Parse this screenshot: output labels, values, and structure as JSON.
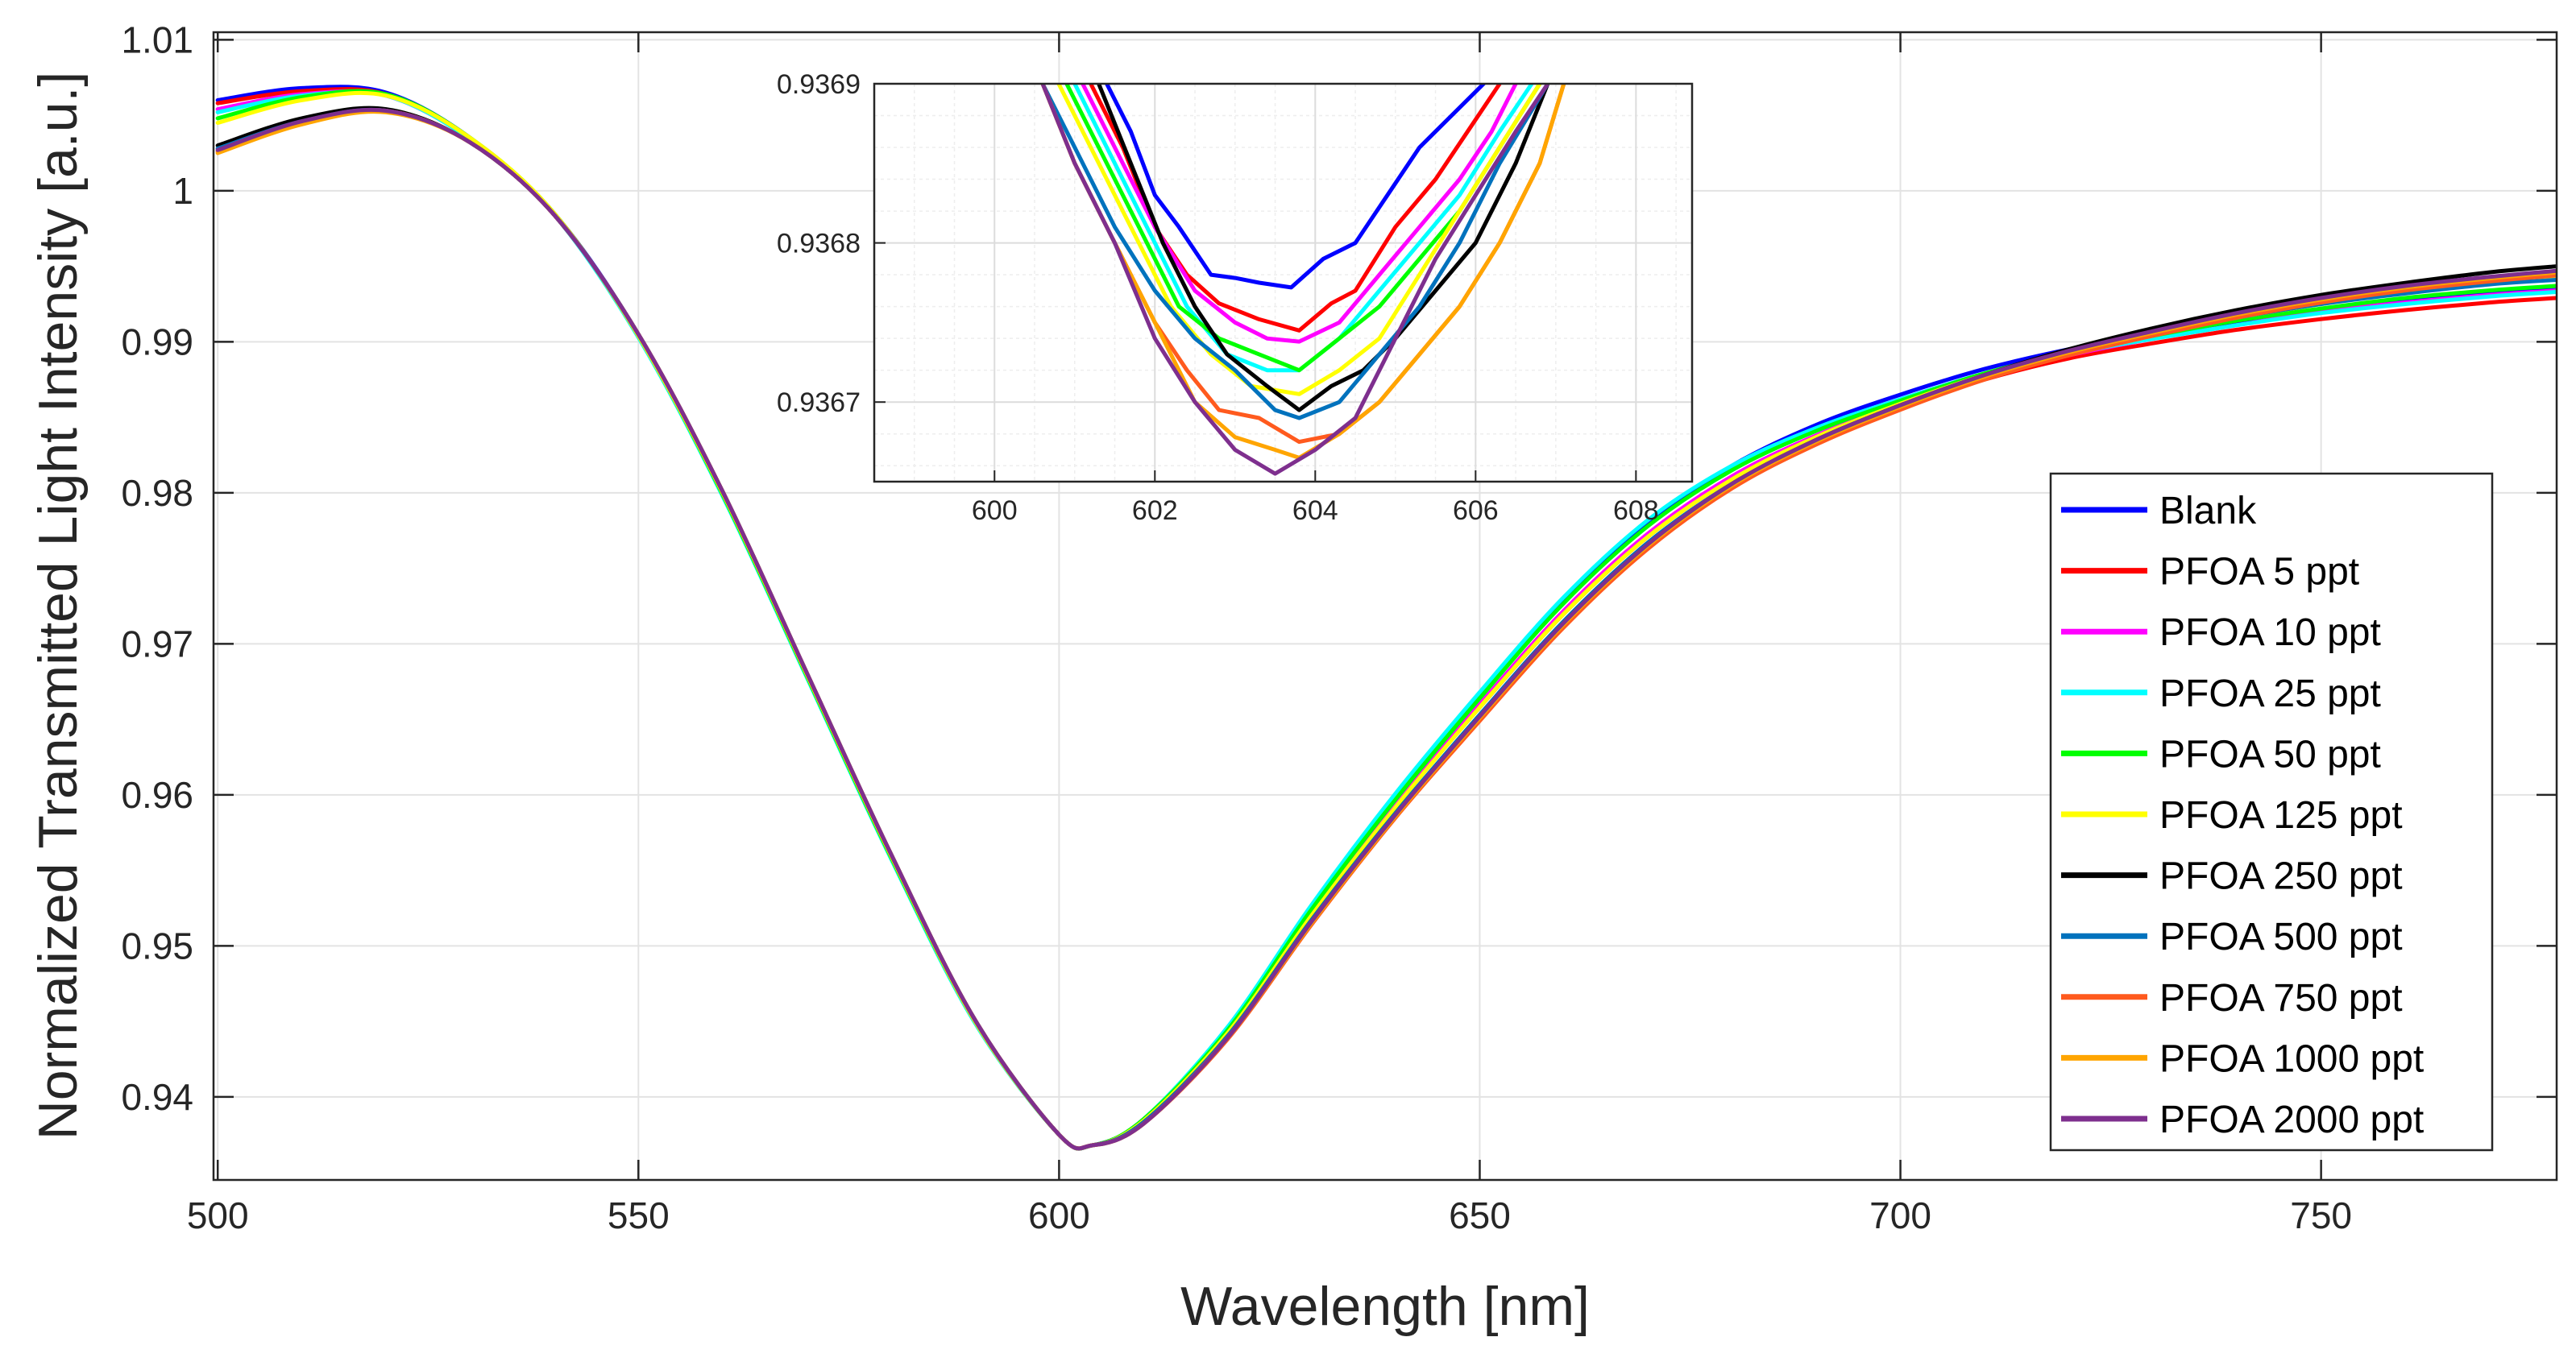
{
  "chart_data": [
    {
      "id": "main",
      "type": "line",
      "title": "",
      "xlabel": "Wavelength [nm]",
      "ylabel": "Normalized Transmitted Light Intensity [a.u.]",
      "xlim": [
        499.5,
        778
      ],
      "ylim": [
        0.9345,
        1.0105
      ],
      "xticks": [
        500,
        550,
        600,
        650,
        700,
        750
      ],
      "xtick_labels": [
        "500",
        "550",
        "600",
        "650",
        "700",
        "750"
      ],
      "yticks": [
        0.94,
        0.95,
        0.96,
        0.97,
        0.98,
        0.99,
        1.0,
        1.01
      ],
      "ytick_labels": [
        "0.94",
        "0.95",
        "0.96",
        "0.97",
        "0.98",
        "0.99",
        "1",
        "1.01"
      ],
      "grid": true,
      "legend_position": "bottom-right",
      "x": [
        500,
        510,
        520,
        530,
        540,
        550,
        560,
        570,
        580,
        590,
        600,
        604,
        610,
        620,
        630,
        640,
        650,
        660,
        670,
        680,
        690,
        700,
        710,
        720,
        730,
        740,
        750,
        760,
        770,
        778
      ],
      "series": [
        {
          "name": "Blank",
          "color": "#0000FF",
          "values": [
            1.006,
            1.0068,
            1.0065,
            1.0035,
            0.9985,
            0.9905,
            0.98,
            0.968,
            0.956,
            0.945,
            0.9375,
            0.9368,
            0.9385,
            0.9445,
            0.9525,
            0.9598,
            0.9665,
            0.9728,
            0.978,
            0.9818,
            0.9845,
            0.9865,
            0.9882,
            0.9895,
            0.9905,
            0.9913,
            0.9921,
            0.9928,
            0.9933,
            0.9936
          ]
        },
        {
          "name": "PFOA 5 ppt",
          "color": "#FF0000",
          "values": [
            1.0058,
            1.0066,
            1.0064,
            1.0034,
            0.9984,
            0.9904,
            0.98,
            0.968,
            0.956,
            0.945,
            0.9375,
            0.9368,
            0.9384,
            0.9443,
            0.9521,
            0.9593,
            0.9658,
            0.972,
            0.9771,
            0.9809,
            0.9836,
            0.9857,
            0.9875,
            0.9889,
            0.9899,
            0.9908,
            0.9915,
            0.9921,
            0.9926,
            0.9929
          ]
        },
        {
          "name": "PFOA 10 ppt",
          "color": "#FF00FF",
          "values": [
            1.0054,
            1.0064,
            1.0063,
            1.0034,
            0.9984,
            0.9904,
            0.98,
            0.968,
            0.956,
            0.945,
            0.9375,
            0.9368,
            0.9384,
            0.9443,
            0.9522,
            0.9594,
            0.966,
            0.9722,
            0.9773,
            0.9811,
            0.9838,
            0.9859,
            0.9877,
            0.9891,
            0.9902,
            0.9911,
            0.992,
            0.9926,
            0.9931,
            0.9934
          ]
        },
        {
          "name": "PFOA 25 ppt",
          "color": "#00FFFF",
          "values": [
            1.0052,
            1.0063,
            1.0063,
            1.0034,
            0.9984,
            0.9903,
            0.9798,
            0.9678,
            0.9558,
            0.9449,
            0.9375,
            0.9368,
            0.9385,
            0.9446,
            0.9527,
            0.9601,
            0.9668,
            0.9731,
            0.9782,
            0.9818,
            0.9843,
            0.9862,
            0.9879,
            0.9892,
            0.9902,
            0.9911,
            0.9919,
            0.9925,
            0.993,
            0.9933
          ]
        },
        {
          "name": "PFOA 50 ppt",
          "color": "#00FF00",
          "values": [
            1.0048,
            1.0062,
            1.0064,
            1.0035,
            0.9985,
            0.9904,
            0.9799,
            0.9679,
            0.9559,
            0.945,
            0.9375,
            0.9368,
            0.9385,
            0.9444,
            0.9524,
            0.9597,
            0.9664,
            0.9727,
            0.9778,
            0.9815,
            0.9841,
            0.9861,
            0.9879,
            0.9893,
            0.9904,
            0.9914,
            0.9922,
            0.9929,
            0.9934,
            0.9937
          ]
        },
        {
          "name": "PFOA 125 ppt",
          "color": "#FFFF00",
          "values": [
            1.0045,
            1.006,
            1.0063,
            1.0035,
            0.9985,
            0.9904,
            0.98,
            0.968,
            0.956,
            0.945,
            0.9375,
            0.9368,
            0.9384,
            0.9442,
            0.952,
            0.9592,
            0.9658,
            0.972,
            0.9771,
            0.9809,
            0.9837,
            0.9859,
            0.9878,
            0.9893,
            0.9905,
            0.9916,
            0.9925,
            0.9933,
            0.9939,
            0.9943
          ]
        },
        {
          "name": "PFOA 250 ppt",
          "color": "#000000",
          "values": [
            1.003,
            1.0048,
            1.0054,
            1.0032,
            0.9984,
            0.9905,
            0.9801,
            0.9681,
            0.9561,
            0.9451,
            0.9375,
            0.9368,
            0.9383,
            0.944,
            0.9517,
            0.9588,
            0.9653,
            0.9715,
            0.9767,
            0.9806,
            0.9835,
            0.9858,
            0.9878,
            0.9895,
            0.9909,
            0.9921,
            0.9931,
            0.9939,
            0.9946,
            0.995
          ]
        },
        {
          "name": "PFOA 500 ppt",
          "color": "#0072BD",
          "values": [
            1.0028,
            1.0046,
            1.0053,
            1.0032,
            0.9984,
            0.9905,
            0.9801,
            0.9681,
            0.9561,
            0.9451,
            0.9375,
            0.9368,
            0.9383,
            0.944,
            0.9517,
            0.9588,
            0.9653,
            0.9715,
            0.9767,
            0.9806,
            0.9834,
            0.9857,
            0.9876,
            0.9892,
            0.9905,
            0.9916,
            0.9925,
            0.9932,
            0.9938,
            0.9941
          ]
        },
        {
          "name": "PFOA 750 ppt",
          "color": "#FF5A1E",
          "values": [
            1.0026,
            1.0045,
            1.0053,
            1.0032,
            0.9984,
            0.9905,
            0.9801,
            0.9681,
            0.9561,
            0.9451,
            0.9375,
            0.9368,
            0.9382,
            0.9438,
            0.9514,
            0.9585,
            0.9649,
            0.9711,
            0.9763,
            0.9803,
            0.9832,
            0.9855,
            0.9875,
            0.9891,
            0.9904,
            0.9916,
            0.9926,
            0.9934,
            0.994,
            0.9944
          ]
        },
        {
          "name": "PFOA 1000 ppt",
          "color": "#FFA500",
          "values": [
            1.0025,
            1.0044,
            1.0052,
            1.0032,
            0.9984,
            0.9905,
            0.9801,
            0.9681,
            0.9561,
            0.9451,
            0.9375,
            0.9368,
            0.9382,
            0.9439,
            0.9515,
            0.9586,
            0.9651,
            0.9713,
            0.9765,
            0.9805,
            0.9834,
            0.9857,
            0.9877,
            0.9893,
            0.9906,
            0.9918,
            0.9928,
            0.9936,
            0.9942,
            0.9946
          ]
        },
        {
          "name": "PFOA 2000 ppt",
          "color": "#7E2F8E",
          "values": [
            1.0027,
            1.0046,
            1.0053,
            1.0032,
            0.9984,
            0.9905,
            0.9801,
            0.9681,
            0.9561,
            0.9451,
            0.9375,
            0.9368,
            0.9382,
            0.9439,
            0.9516,
            0.9587,
            0.9652,
            0.9714,
            0.9766,
            0.9806,
            0.9835,
            0.9858,
            0.9878,
            0.9894,
            0.9907,
            0.9919,
            0.9929,
            0.9937,
            0.9943,
            0.9947
          ]
        }
      ]
    },
    {
      "id": "inset",
      "type": "line",
      "title": "",
      "xlabel": "",
      "ylabel": "",
      "xlim": [
        598.5,
        608.7
      ],
      "ylim": [
        0.93665,
        0.9369
      ],
      "xticks": [
        600,
        602,
        604,
        606,
        608
      ],
      "xtick_labels": [
        "600",
        "602",
        "604",
        "606",
        "608"
      ],
      "yticks": [
        0.9367,
        0.9368,
        0.9369
      ],
      "ytick_labels": [
        "0.9367",
        "0.9368",
        "0.9369"
      ],
      "grid": true,
      "minor_grid": true,
      "series": [
        {
          "name": "Blank",
          "color": "#0000FF",
          "x": [
            601.4,
            601.7,
            602.0,
            602.3,
            602.7,
            603.0,
            603.3,
            603.7,
            604.1,
            604.5,
            604.9,
            605.3,
            605.7,
            606.1
          ],
          "values": [
            0.9369,
            0.93687,
            0.93683,
            0.93681,
            0.93678,
            0.936778,
            0.936775,
            0.936772,
            0.93679,
            0.9368,
            0.93683,
            0.93686,
            0.93688,
            0.9369
          ]
        },
        {
          "name": "PFOA 5 ppt",
          "color": "#FF0000",
          "x": [
            601.2,
            601.6,
            602.0,
            602.4,
            602.8,
            603.3,
            603.8,
            604.2,
            604.5,
            605.0,
            605.5,
            605.9,
            606.3
          ],
          "values": [
            0.9369,
            0.93686,
            0.93681,
            0.93678,
            0.936762,
            0.936752,
            0.936745,
            0.936762,
            0.93677,
            0.93681,
            0.93684,
            0.93687,
            0.9369
          ]
        },
        {
          "name": "PFOA 10 ppt",
          "color": "#FF00FF",
          "x": [
            601.1,
            601.5,
            602.0,
            602.5,
            603.0,
            603.4,
            603.8,
            604.3,
            604.8,
            605.3,
            605.8,
            606.2,
            606.5
          ],
          "values": [
            0.9369,
            0.93686,
            0.93681,
            0.93677,
            0.93675,
            0.93674,
            0.936738,
            0.93675,
            0.93678,
            0.93681,
            0.93684,
            0.93687,
            0.9369
          ]
        },
        {
          "name": "PFOA 25 ppt",
          "color": "#00FFFF",
          "x": [
            601.0,
            601.4,
            601.9,
            602.4,
            602.9,
            603.4,
            603.8,
            604.3,
            604.8,
            605.3,
            605.8,
            606.3,
            606.7
          ],
          "values": [
            0.9369,
            0.93686,
            0.93681,
            0.93676,
            0.93673,
            0.93672,
            0.93672,
            0.93674,
            0.93677,
            0.9368,
            0.93683,
            0.93687,
            0.9369
          ]
        },
        {
          "name": "PFOA 50 ppt",
          "color": "#00FF00",
          "x": [
            600.9,
            601.3,
            601.8,
            602.3,
            602.8,
            603.3,
            603.8,
            604.3,
            604.8,
            605.3,
            605.8,
            606.3,
            606.8
          ],
          "values": [
            0.9369,
            0.93686,
            0.93681,
            0.93676,
            0.93674,
            0.93673,
            0.93672,
            0.93674,
            0.93676,
            0.93679,
            0.93682,
            0.93686,
            0.9369
          ]
        },
        {
          "name": "PFOA 125 ppt",
          "color": "#FFFF00",
          "x": [
            600.8,
            601.2,
            601.7,
            602.2,
            602.7,
            603.2,
            603.8,
            604.3,
            604.8,
            605.3,
            605.8,
            606.3,
            606.8
          ],
          "values": [
            0.9369,
            0.93686,
            0.93681,
            0.93676,
            0.93673,
            0.93671,
            0.936705,
            0.93672,
            0.93674,
            0.93678,
            0.93682,
            0.93686,
            0.9369
          ]
        },
        {
          "name": "PFOA 250 ppt",
          "color": "#000000",
          "x": [
            601.3,
            601.7,
            602.1,
            602.5,
            602.9,
            603.4,
            603.8,
            604.2,
            604.6,
            605.0,
            605.5,
            606.0,
            606.5,
            606.9
          ],
          "values": [
            0.9369,
            0.93685,
            0.9368,
            0.93676,
            0.93673,
            0.93671,
            0.936695,
            0.93671,
            0.93672,
            0.93674,
            0.93677,
            0.9368,
            0.93685,
            0.9369
          ]
        },
        {
          "name": "PFOA 500 ppt",
          "color": "#0072BD",
          "x": [
            600.6,
            601.0,
            601.5,
            602.0,
            602.5,
            603.0,
            603.5,
            603.8,
            604.3,
            604.8,
            605.3,
            605.8,
            606.3,
            606.9
          ],
          "values": [
            0.9369,
            0.93686,
            0.93681,
            0.93677,
            0.93674,
            0.93672,
            0.936695,
            0.93669,
            0.9367,
            0.93673,
            0.93676,
            0.9368,
            0.93685,
            0.9369
          ]
        },
        {
          "name": "PFOA 750 ppt",
          "color": "#FF5A1E",
          "x": [
            600.6,
            601.0,
            601.5,
            602.0,
            602.4,
            602.8,
            603.3,
            603.8,
            604.3,
            604.8,
            605.3,
            605.8,
            606.3,
            606.8,
            607.1
          ],
          "values": [
            0.9369,
            0.93685,
            0.9368,
            0.93675,
            0.93672,
            0.936695,
            0.93669,
            0.936675,
            0.93668,
            0.9367,
            0.93673,
            0.93676,
            0.9368,
            0.93685,
            0.9369
          ]
        },
        {
          "name": "PFOA 1000 ppt",
          "color": "#FFA500",
          "x": [
            600.6,
            601.0,
            601.5,
            602.0,
            602.5,
            603.0,
            603.5,
            603.8,
            604.3,
            604.8,
            605.3,
            605.8,
            606.3,
            606.8,
            607.1
          ],
          "values": [
            0.9369,
            0.93685,
            0.9368,
            0.93675,
            0.9367,
            0.936678,
            0.93667,
            0.936665,
            0.93668,
            0.9367,
            0.93673,
            0.93676,
            0.9368,
            0.93685,
            0.9369
          ]
        },
        {
          "name": "PFOA 2000 ppt",
          "color": "#7E2F8E",
          "x": [
            600.6,
            601.0,
            601.5,
            602.0,
            602.5,
            603.0,
            603.5,
            604.0,
            604.5,
            605.0,
            605.5,
            606.0,
            606.5,
            606.9
          ],
          "values": [
            0.9369,
            0.93685,
            0.9368,
            0.93674,
            0.9367,
            0.93667,
            0.936655,
            0.93667,
            0.93669,
            0.93674,
            0.93679,
            0.93683,
            0.93687,
            0.9369
          ]
        }
      ]
    }
  ]
}
